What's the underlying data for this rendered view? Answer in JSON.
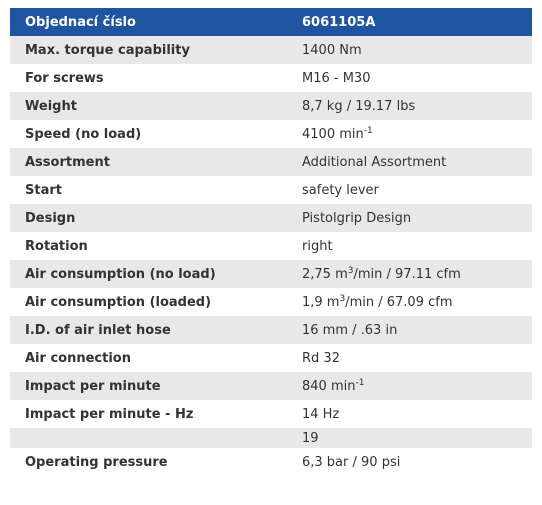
{
  "table": {
    "header": [
      "Objednací číslo",
      "6061105A"
    ],
    "rows": [
      [
        "Max. torque capability",
        "1400 Nm"
      ],
      [
        "For screws",
        "M16 - M30"
      ],
      [
        "Weight",
        "8,7 kg / 19.17 lbs"
      ],
      [
        "Speed (no load)",
        [
          "4100 min",
          {
            "sup": "-1"
          }
        ]
      ],
      [
        "Assortment",
        "Additional Assortment"
      ],
      [
        "Start",
        "safety lever"
      ],
      [
        "Design",
        "Pistolgrip Design"
      ],
      [
        "Rotation",
        "right"
      ],
      [
        "Air consumption (no load)",
        [
          "2,75 m",
          {
            "sup": "3"
          },
          "/min / 97.11 cfm"
        ]
      ],
      [
        "Air consumption (loaded)",
        [
          "1,9 m",
          {
            "sup": "3"
          },
          "/min / 67.09 cfm"
        ]
      ],
      [
        "I.D. of air inlet hose",
        "16 mm / .63 in"
      ],
      [
        "Air connection",
        "Rd 32"
      ],
      [
        "Impact per minute",
        [
          "840 min",
          {
            "sup": "-1"
          }
        ]
      ],
      [
        "Impact per minute - Hz",
        "14 Hz"
      ],
      [
        null,
        "19"
      ],
      [
        "Operating pressure",
        "6,3 bar / 90 psi"
      ]
    ]
  }
}
